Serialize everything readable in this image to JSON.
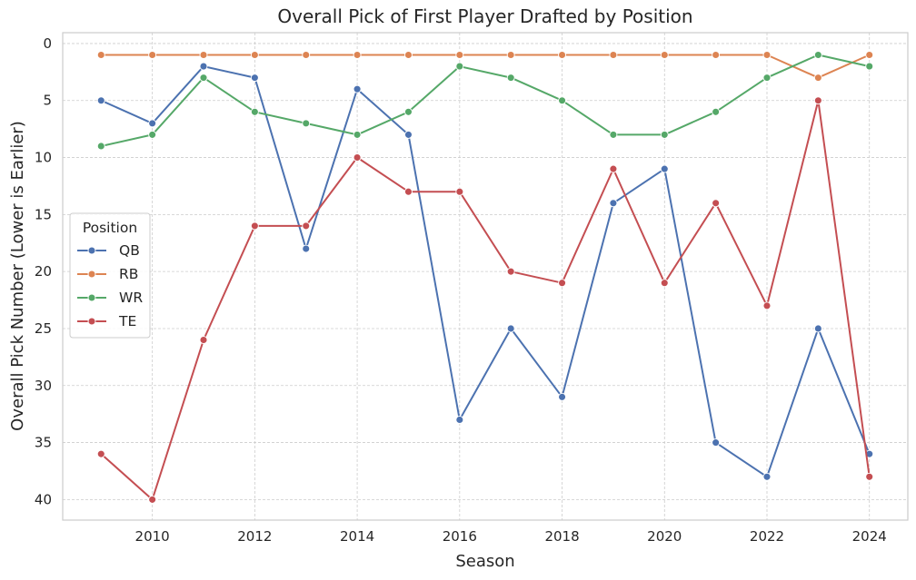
{
  "chart_data": {
    "type": "line",
    "title": "Overall Pick of First Player Drafted by Position",
    "xlabel": "Season",
    "ylabel": "Overall Pick Number (Lower is Earlier)",
    "x": [
      2009,
      2010,
      2011,
      2012,
      2013,
      2014,
      2015,
      2016,
      2017,
      2018,
      2019,
      2020,
      2021,
      2022,
      2023,
      2024
    ],
    "xticks": [
      2010,
      2012,
      2014,
      2016,
      2018,
      2020,
      2022,
      2024
    ],
    "yticks": [
      0,
      5,
      10,
      15,
      20,
      25,
      30,
      35,
      40
    ],
    "xlim": [
      2008.25,
      2024.75
    ],
    "ylim": [
      41.8,
      -0.95
    ],
    "y_inverted": true,
    "grid": true,
    "legend": {
      "title": "Position",
      "placement": "center-left"
    },
    "series": [
      {
        "name": "QB",
        "color": "#4c72b0",
        "values": [
          5,
          7,
          2,
          3,
          18,
          4,
          8,
          33,
          25,
          31,
          14,
          11,
          35,
          38,
          25,
          36
        ]
      },
      {
        "name": "RB",
        "color": "#dd8452",
        "values": [
          1,
          1,
          1,
          1,
          1,
          1,
          1,
          1,
          1,
          1,
          1,
          1,
          1,
          1,
          3,
          1
        ]
      },
      {
        "name": "WR",
        "color": "#55a868",
        "values": [
          9,
          8,
          3,
          6,
          7,
          8,
          6,
          2,
          3,
          5,
          8,
          8,
          6,
          3,
          1,
          2
        ]
      },
      {
        "name": "TE",
        "color": "#c44e52",
        "values": [
          36,
          40,
          26,
          16,
          16,
          10,
          13,
          13,
          20,
          21,
          11,
          21,
          14,
          23,
          5,
          38
        ]
      }
    ]
  }
}
